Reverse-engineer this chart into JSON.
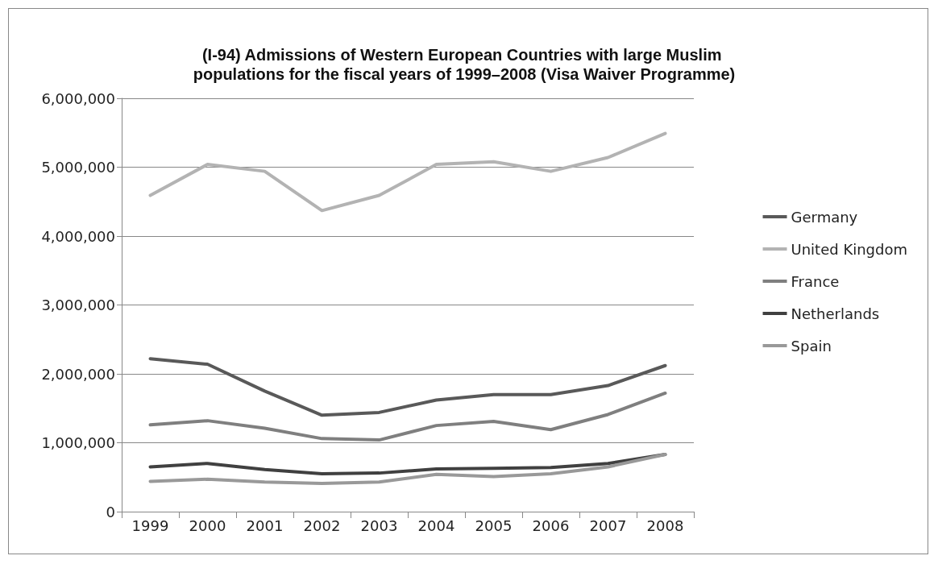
{
  "chart_data": {
    "type": "line",
    "title": "(I-94) Admissions of Western European Countries with large Muslim populations for the fiscal years of 1999–2008 (Visa Waiver Programme)",
    "categories": [
      "1999",
      "2000",
      "2001",
      "2002",
      "2003",
      "2004",
      "2005",
      "2006",
      "2007",
      "2008"
    ],
    "series": [
      {
        "name": "Germany",
        "color": "#595959",
        "values": [
          2220000,
          2140000,
          1750000,
          1400000,
          1440000,
          1620000,
          1700000,
          1700000,
          1830000,
          2120000
        ]
      },
      {
        "name": "United Kingdom",
        "color": "#b3b3b3",
        "values": [
          4590000,
          5040000,
          4940000,
          4370000,
          4590000,
          5040000,
          5080000,
          4940000,
          5140000,
          5490000
        ]
      },
      {
        "name": "France",
        "color": "#7f7f7f",
        "values": [
          1260000,
          1320000,
          1210000,
          1060000,
          1040000,
          1250000,
          1310000,
          1190000,
          1410000,
          1720000
        ]
      },
      {
        "name": "Netherlands",
        "color": "#404040",
        "values": [
          650000,
          700000,
          610000,
          550000,
          560000,
          620000,
          630000,
          640000,
          700000,
          830000
        ]
      },
      {
        "name": "Spain",
        "color": "#999999",
        "values": [
          440000,
          470000,
          430000,
          410000,
          430000,
          540000,
          510000,
          550000,
          650000,
          830000
        ]
      }
    ],
    "ylim": [
      0,
      6000000
    ],
    "yticks": [
      0,
      {
        "value": 1000000,
        "label": "1,000,000"
      },
      {
        "value": 2000000,
        "label": "2,000,000"
      },
      {
        "value": 3000000,
        "label": "3,000,000"
      },
      {
        "value": 4000000,
        "label": "4,000,000"
      },
      {
        "value": 5000000,
        "label": "5,000,000"
      },
      {
        "value": 6000000,
        "label": "6,000,000"
      }
    ],
    "grid": "y",
    "legend": "right",
    "marker": "none",
    "line_style": "solid"
  }
}
